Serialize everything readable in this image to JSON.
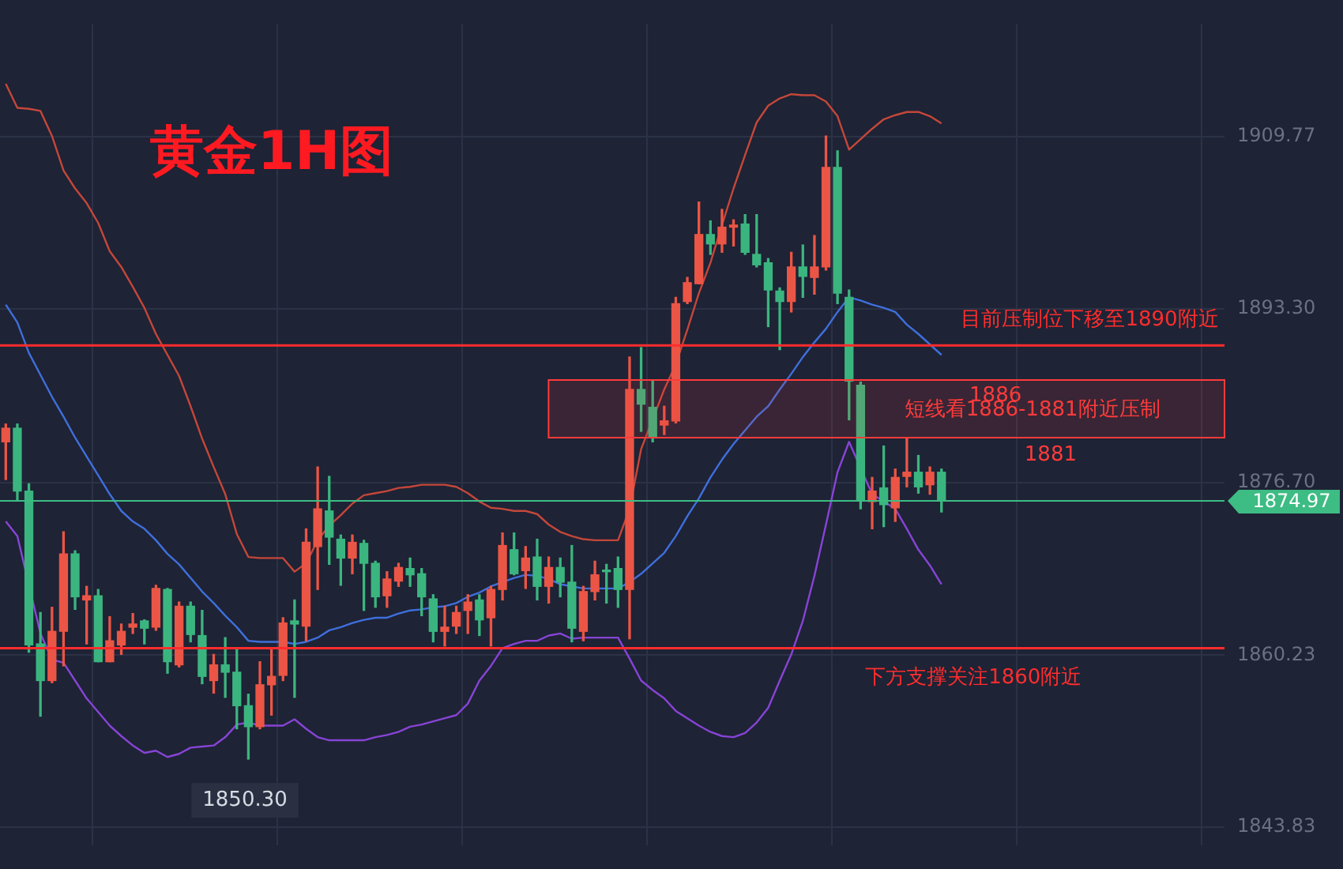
{
  "chart_data": {
    "type": "candlestick",
    "title": "黄金1H图",
    "categories": [
      null,
      null,
      null,
      null,
      null,
      null,
      null,
      null,
      null,
      null,
      null,
      null,
      null,
      null,
      null,
      null,
      null,
      null,
      null,
      null,
      null,
      null,
      null,
      null,
      null,
      null,
      null,
      null,
      null,
      null,
      null,
      null,
      null,
      null,
      null,
      null,
      null,
      null,
      null,
      null,
      null,
      null,
      null,
      null,
      null,
      null,
      null,
      null,
      null,
      null,
      null,
      null,
      null,
      null,
      null,
      null,
      null,
      null,
      null,
      null,
      null,
      null,
      null,
      null,
      null,
      null,
      null,
      null,
      null,
      null,
      null,
      null,
      null,
      null,
      null,
      null,
      null,
      null,
      null,
      null,
      null,
      null,
      null,
      null,
      null,
      null,
      null,
      null,
      null,
      null,
      null,
      null,
      null,
      null,
      null,
      null,
      null,
      null,
      null,
      null,
      null,
      null,
      null,
      null,
      null,
      null
    ],
    "ohlc": [
      [
        1880.6,
        1882.3,
        1877.0,
        1881.9
      ],
      [
        1881.9,
        1882.3,
        1875.0,
        1875.9
      ],
      [
        1875.9,
        1876.6,
        1860.5,
        1861.2
      ],
      [
        1861.3,
        1864.3,
        1854.4,
        1857.8
      ],
      [
        1857.8,
        1864.8,
        1857.6,
        1862.5
      ],
      [
        1862.5,
        1872.0,
        1859.2,
        1869.9
      ],
      [
        1869.9,
        1870.2,
        1864.6,
        1865.8
      ],
      [
        1865.5,
        1866.8,
        1861.3,
        1865.9
      ],
      [
        1865.9,
        1866.5,
        1859.6,
        1859.6
      ],
      [
        1859.6,
        1863.9,
        1859.6,
        1861.6
      ],
      [
        1861.2,
        1863.2,
        1860.3,
        1862.5
      ],
      [
        1862.9,
        1864.2,
        1862.3,
        1863.2
      ],
      [
        1863.5,
        1863.6,
        1861.3,
        1862.8
      ],
      [
        1862.9,
        1866.9,
        1862.6,
        1866.6
      ],
      [
        1866.5,
        1866.6,
        1858.5,
        1859.6
      ],
      [
        1859.3,
        1865.3,
        1859.1,
        1864.9
      ],
      [
        1864.9,
        1865.3,
        1861.5,
        1862.2
      ],
      [
        1862.1,
        1864.5,
        1857.5,
        1858.2
      ],
      [
        1857.8,
        1860.3,
        1856.6,
        1859.3
      ],
      [
        1859.3,
        1861.9,
        1856.2,
        1858.6
      ],
      [
        1858.6,
        1860.8,
        1853.2,
        1855.4
      ],
      [
        1855.4,
        1856.5,
        1850.3,
        1853.4
      ],
      [
        1853.4,
        1859.6,
        1853.2,
        1857.4
      ],
      [
        1857.4,
        1860.8,
        1854.5,
        1858.2
      ],
      [
        1858.3,
        1863.8,
        1857.8,
        1863.3
      ],
      [
        1863.5,
        1865.5,
        1856.2,
        1863.2
      ],
      [
        1863.0,
        1872.3,
        1861.6,
        1871.0
      ],
      [
        1870.6,
        1878.2,
        1866.5,
        1874.2
      ],
      [
        1874.0,
        1877.3,
        1868.9,
        1871.5
      ],
      [
        1871.3,
        1871.7,
        1866.9,
        1869.5
      ],
      [
        1869.5,
        1871.7,
        1868.0,
        1871.0
      ],
      [
        1870.9,
        1871.2,
        1864.5,
        1869.0
      ],
      [
        1869.0,
        1869.2,
        1864.8,
        1865.8
      ],
      [
        1865.9,
        1868.2,
        1864.8,
        1867.5
      ],
      [
        1867.3,
        1869.0,
        1866.8,
        1868.6
      ],
      [
        1868.5,
        1869.5,
        1866.8,
        1867.9
      ],
      [
        1868.0,
        1868.5,
        1864.0,
        1865.8
      ],
      [
        1865.6,
        1866.0,
        1861.5,
        1862.5
      ],
      [
        1862.5,
        1864.9,
        1861.1,
        1862.9
      ],
      [
        1863.0,
        1864.9,
        1862.3,
        1864.3
      ],
      [
        1864.5,
        1866.0,
        1862.3,
        1865.3
      ],
      [
        1865.5,
        1866.0,
        1862.1,
        1863.6
      ],
      [
        1863.8,
        1866.8,
        1861.1,
        1866.5
      ],
      [
        1866.5,
        1871.9,
        1865.5,
        1870.7
      ],
      [
        1870.3,
        1871.9,
        1867.9,
        1868.0
      ],
      [
        1868.3,
        1870.6,
        1866.6,
        1869.5
      ],
      [
        1869.6,
        1871.3,
        1865.5,
        1866.8
      ],
      [
        1866.8,
        1869.6,
        1865.2,
        1868.6
      ],
      [
        1868.6,
        1869.5,
        1865.8,
        1867.2
      ],
      [
        1867.2,
        1870.7,
        1861.5,
        1862.8
      ],
      [
        1862.5,
        1866.8,
        1861.6,
        1866.3
      ],
      [
        1866.3,
        1869.2,
        1865.5,
        1867.9
      ],
      [
        1868.3,
        1868.9,
        1865.2,
        1868.2
      ],
      [
        1868.5,
        1869.6,
        1864.8,
        1866.5
      ],
      [
        1866.5,
        1888.7,
        1861.8,
        1885.6
      ],
      [
        1885.6,
        1889.6,
        1881.6,
        1884.2
      ],
      [
        1883.9,
        1886.4,
        1880.6,
        1881.0
      ],
      [
        1882.2,
        1884.0,
        1881.3,
        1882.6
      ],
      [
        1882.6,
        1894.4,
        1882.4,
        1893.8
      ],
      [
        1894.0,
        1896.3,
        1893.8,
        1895.8
      ],
      [
        1895.7,
        1903.5,
        1895.7,
        1900.4
      ],
      [
        1900.4,
        1901.7,
        1898.5,
        1899.5
      ],
      [
        1899.5,
        1902.8,
        1898.7,
        1901.1
      ],
      [
        1901.1,
        1901.8,
        1899.3,
        1901.3
      ],
      [
        1901.4,
        1902.3,
        1898.5,
        1898.7
      ],
      [
        1898.5,
        1902.3,
        1897.3,
        1897.5
      ],
      [
        1897.7,
        1898.1,
        1891.6,
        1895.1
      ],
      [
        1895.0,
        1895.3,
        1889.4,
        1894.0
      ],
      [
        1894.0,
        1898.7,
        1893.0,
        1897.3
      ],
      [
        1897.3,
        1899.4,
        1894.4,
        1896.4
      ],
      [
        1896.3,
        1900.3,
        1894.7,
        1897.3
      ],
      [
        1897.3,
        1909.8,
        1897.0,
        1906.8
      ],
      [
        1906.8,
        1908.4,
        1893.8,
        1894.8
      ],
      [
        1894.4,
        1895.1,
        1882.7,
        1886.4
      ],
      [
        1886.0,
        1886.3,
        1874.2,
        1875.0
      ],
      [
        1874.9,
        1877.2,
        1872.3,
        1875.9
      ],
      [
        1876.2,
        1880.2,
        1872.5,
        1874.6
      ],
      [
        1874.3,
        1878.0,
        1873.0,
        1877.2
      ],
      [
        1877.3,
        1880.9,
        1876.3,
        1877.7
      ],
      [
        1877.7,
        1879.3,
        1875.7,
        1876.3
      ],
      [
        1876.5,
        1878.2,
        1875.6,
        1877.7
      ],
      [
        1877.7,
        1878.0,
        1873.9,
        1874.97
      ],
      null,
      null,
      null,
      null,
      null,
      null,
      null,
      null,
      null,
      null,
      null,
      null,
      null,
      null,
      null,
      null,
      null,
      null,
      null,
      null,
      null,
      null,
      null,
      null
    ],
    "colors": [
      "#eb5545",
      "#3bb57f",
      "#3bb57f",
      "#3bb57f",
      "#eb5545",
      "#eb5545",
      "#3bb57f",
      "#eb5545",
      "#3bb57f",
      "#eb5545",
      "#eb5545",
      "#eb5545",
      "#3bb57f",
      "#eb5545",
      "#3bb57f",
      "#eb5545",
      "#3bb57f",
      "#3bb57f",
      "#eb5545",
      "#3bb57f",
      "#3bb57f",
      "#3bb57f",
      "#eb5545",
      "#eb5545",
      "#eb5545",
      "#3bb57f",
      "#eb5545",
      "#eb5545",
      "#3bb57f",
      "#3bb57f",
      "#eb5545",
      "#3bb57f",
      "#3bb57f",
      "#eb5545",
      "#eb5545",
      "#3bb57f",
      "#3bb57f",
      "#3bb57f",
      "#eb5545",
      "#eb5545",
      "#eb5545",
      "#3bb57f",
      "#eb5545",
      "#eb5545",
      "#3bb57f",
      "#eb5545",
      "#3bb57f",
      "#eb5545",
      "#3bb57f",
      "#3bb57f",
      "#eb5545",
      "#eb5545",
      "#3bb57f",
      "#3bb57f",
      "#eb5545",
      "#3bb57f",
      "#3bb57f",
      "#eb5545",
      "#eb5545",
      "#eb5545",
      "#eb5545",
      "#3bb57f",
      "#eb5545",
      "#eb5545",
      "#3bb57f",
      "#3bb57f",
      "#3bb57f",
      "#3bb57f",
      "#eb5545",
      "#3bb57f",
      "#eb5545",
      "#eb5545",
      "#3bb57f",
      "#3bb57f",
      "#3bb57f",
      "#eb5545",
      "#3bb57f",
      "#eb5545",
      "#eb5545",
      "#3bb57f",
      "#eb5545",
      "#3bb57f",
      null,
      null,
      null,
      null,
      null,
      null,
      null,
      null,
      null,
      null,
      null,
      null,
      null,
      null,
      null,
      null,
      null,
      null,
      null,
      null,
      null,
      null,
      null,
      null
    ],
    "series": [
      {
        "type": "line",
        "color": "#c4473a",
        "values": [
          1914.8,
          1912.5,
          1912.4,
          1912.2,
          1909.8,
          1906.5,
          1904.8,
          1903.4,
          1901.5,
          1898.8,
          1897.3,
          1895.4,
          1893.4,
          1890.9,
          1888.9,
          1886.9,
          1884.0,
          1880.9,
          1878.2,
          1875.6,
          1871.8,
          1869.6,
          1869.5,
          1869.5,
          1869.5,
          1868.2,
          1869.0,
          1871.2,
          1872.6,
          1873.6,
          1874.7,
          1875.5,
          1875.7,
          1875.9,
          1876.2,
          1876.3,
          1876.5,
          1876.5,
          1876.5,
          1876.3,
          1875.7,
          1874.9,
          1874.3,
          1874.2,
          1874.0,
          1874.0,
          1873.7,
          1872.7,
          1872.0,
          1871.6,
          1871.3,
          1871.2,
          1871.2,
          1871.2,
          1874.2,
          1879.9,
          null,
          1885.6,
          1888.0,
          1891.3,
          1894.8,
          1897.7,
          1901.3,
          1904.8,
          1908.0,
          1911.1,
          1912.7,
          1913.4,
          1913.8,
          1913.7,
          1913.7,
          1913.1,
          1911.7,
          1908.5,
          1909.5,
          1910.5,
          1911.4,
          1911.8,
          1912.1,
          1912.1,
          1911.7,
          1911.0,
          null,
          null,
          null,
          null,
          null,
          null,
          null,
          null,
          null,
          null,
          null,
          null,
          null,
          null,
          null,
          null,
          null,
          null,
          null,
          null,
          null,
          null,
          null,
          null
        ]
      },
      {
        "type": "line",
        "color": "#3f6fdc",
        "values": [
          1893.7,
          1892.0,
          1889.1,
          1887.0,
          1884.9,
          1883.0,
          1881.0,
          1879.2,
          1877.4,
          1875.6,
          1874.0,
          1873.0,
          1872.3,
          1871.2,
          1869.9,
          1868.9,
          1867.6,
          1866.3,
          1865.2,
          1864.0,
          1862.9,
          1861.6,
          1861.5,
          1861.5,
          1861.5,
          1861.3,
          1861.5,
          1861.9,
          1862.6,
          1862.9,
          1863.3,
          1863.6,
          1863.8,
          1863.8,
          1864.2,
          1864.5,
          1864.6,
          1864.8,
          1864.9,
          1865.2,
          1865.8,
          1866.2,
          1866.8,
          1867.2,
          1867.6,
          1867.9,
          1867.8,
          1867.5,
          1867.0,
          1866.8,
          1866.6,
          1866.6,
          1866.6,
          1866.6,
          1867.2,
          1868.0,
          1869.0,
          1870.0,
          1871.6,
          1873.5,
          1875.2,
          1877.2,
          1878.9,
          1880.4,
          1881.7,
          1883.0,
          1884.0,
          1885.6,
          1887.1,
          1888.7,
          1890.1,
          1891.4,
          1893.0,
          1894.4,
          1894.1,
          1893.7,
          1893.4,
          1893.0,
          1891.8,
          1890.9,
          1889.9,
          1888.9,
          null,
          null,
          null,
          null,
          null,
          null,
          null,
          null,
          null,
          null,
          null,
          null,
          null,
          null,
          null,
          null,
          null,
          null,
          null,
          null,
          null,
          null,
          null,
          null
        ]
      },
      {
        "type": "line",
        "color": "#8744d6",
        "values": [
          1873.0,
          1871.6,
          null,
          1862.3,
          1859.8,
          1859.5,
          1857.8,
          1856.1,
          1854.8,
          1853.5,
          1852.5,
          1851.6,
          1850.9,
          1851.1,
          1850.5,
          1850.8,
          1851.4,
          1851.5,
          1851.6,
          1852.4,
          1853.6,
          1853.8,
          1853.5,
          1853.5,
          1853.5,
          1854.1,
          1853.2,
          1852.4,
          1852.1,
          1852.1,
          1852.1,
          1852.1,
          1852.4,
          1852.6,
          1852.9,
          1853.4,
          1853.6,
          1853.9,
          1854.2,
          1854.5,
          1855.6,
          1857.8,
          1859.2,
          1860.9,
          1861.3,
          1861.6,
          1861.6,
          1862.1,
          1862.3,
          1861.8,
          1861.9,
          1861.9,
          1861.9,
          1861.9,
          1859.9,
          1857.8,
          1856.9,
          1856.1,
          1854.9,
          1854.2,
          1853.5,
          1852.9,
          1852.5,
          1852.4,
          1852.8,
          1853.8,
          1855.2,
          1857.8,
          1860.3,
          1863.5,
          1867.8,
          1872.7,
          1877.7,
          1880.6,
          null,
          1875.6,
          1874.9,
          1874.2,
          1872.3,
          1870.3,
          1868.8,
          1867.0,
          null,
          null,
          null,
          null,
          null,
          null,
          null,
          null,
          null,
          null,
          null,
          null,
          null,
          null,
          null,
          null,
          null,
          null,
          null,
          null,
          null,
          null,
          null,
          null
        ]
      }
    ],
    "ylim": [
      1842.1,
      1920.5
    ],
    "yticks": [
      1909.77,
      {
        "value": 1893.3,
        "label": "1893.30"
      },
      {
        "value": 1876.7,
        "label": "1876.70"
      },
      1860.23,
      1843.83
    ],
    "grid": true,
    "tick_labels": "y",
    "ref_lines": [
      {
        "axis": "y",
        "value": 1889.8,
        "label": "目前压制位下移至1890附近",
        "color": "#ff2d2d"
      },
      {
        "axis": "y",
        "value": 1860.9,
        "label": "下方支撑关注1860附近",
        "color": "#ff2d2d"
      },
      {
        "axis": "y",
        "value": 1874.97,
        "label": "1874.97",
        "color": "#3dbc84"
      }
    ],
    "bands": [
      {
        "axis": "y",
        "from": 1881.0,
        "to": 1886.5,
        "label": "短线看1886-1881附近压制",
        "color": "#ff3b3b"
      }
    ],
    "annotations": [
      "1886",
      "1881",
      "1850.30"
    ]
  }
}
